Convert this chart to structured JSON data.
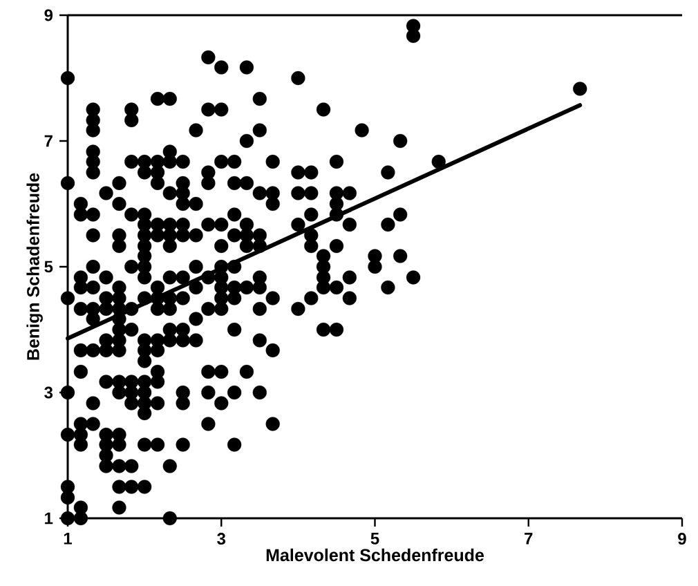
{
  "chart_data": {
    "type": "scatter",
    "xlabel": "Malevolent Schedenfreude",
    "ylabel": "Benign Schadenfreude",
    "xlim": [
      1,
      9
    ],
    "ylim": [
      1,
      9
    ],
    "xticks": [
      1,
      3,
      5,
      7,
      9
    ],
    "yticks": [
      1,
      3,
      5,
      7,
      9
    ],
    "marker": "circle",
    "series": [
      {
        "color": "#000000",
        "x": [
          1,
          1,
          1,
          1,
          1,
          1,
          1,
          1,
          1.17,
          1.17,
          1.17,
          1.17,
          1.17,
          1.17,
          1.17,
          1.17,
          1.17,
          1.17,
          1.17,
          1.17,
          1.33,
          1.33,
          1.33,
          1.33,
          1.33,
          1.33,
          1.33,
          1.33,
          1.33,
          1.33,
          1.33,
          1.33,
          1.33,
          1.33,
          1.33,
          1.5,
          1.5,
          1.5,
          1.5,
          1.5,
          1.5,
          1.5,
          1.5,
          1.5,
          1.5,
          1.5,
          1.67,
          1.67,
          1.67,
          1.67,
          1.67,
          1.67,
          1.67,
          1.67,
          1.67,
          1.67,
          1.67,
          1.67,
          1.67,
          1.67,
          1.67,
          1.67,
          1.67,
          1.67,
          1.83,
          1.83,
          1.83,
          1.83,
          1.83,
          1.83,
          1.83,
          1.83,
          1.83,
          1.83,
          1.83,
          1.83,
          2,
          2,
          2,
          2,
          2,
          2,
          2,
          2,
          2,
          2,
          2,
          2,
          2,
          2,
          2,
          2,
          2,
          2,
          2,
          2.17,
          2.17,
          2.17,
          2.17,
          2.17,
          2.17,
          2.17,
          2.17,
          2.17,
          2.17,
          2.17,
          2.17,
          2.17,
          2.17,
          2.17,
          2.33,
          2.33,
          2.33,
          2.33,
          2.33,
          2.33,
          2.33,
          2.33,
          2.33,
          2.33,
          2.33,
          2.33,
          2.33,
          2.33,
          2.5,
          2.5,
          2.5,
          2.5,
          2.5,
          2.5,
          2.5,
          2.5,
          2.5,
          2.5,
          2.5,
          2.5,
          2.5,
          2.67,
          2.67,
          2.67,
          2.67,
          2.67,
          2.67,
          2.67,
          2.83,
          2.83,
          2.83,
          2.83,
          2.83,
          2.83,
          2.83,
          2.83,
          2.83,
          2.83,
          3,
          3,
          3,
          3,
          3,
          3,
          3,
          3,
          3,
          3,
          3,
          3,
          3.17,
          3.17,
          3.17,
          3.17,
          3.17,
          3.17,
          3.17,
          3.17,
          3.17,
          3.17,
          3.33,
          3.33,
          3.33,
          3.33,
          3.33,
          3.33,
          3.33,
          3.33,
          3.5,
          3.5,
          3.5,
          3.5,
          3.5,
          3.5,
          3.5,
          3.5,
          3.5,
          3.5,
          3.67,
          3.67,
          3.67,
          3.67,
          3.67,
          3.67,
          4,
          4,
          4,
          4,
          4,
          4.17,
          4.17,
          4.17,
          4.17,
          4.17,
          4.17,
          4.33,
          4.33,
          4.33,
          4.33,
          4.33,
          4.33,
          4.5,
          4.5,
          4.5,
          4.5,
          4.5,
          4.5,
          4.5,
          4.67,
          4.67,
          4.67,
          4.67,
          4.83,
          5,
          5,
          5.17,
          5.17,
          5.17,
          5.33,
          5.33,
          5.33,
          5.5,
          5.5,
          5.5,
          5.83,
          7.67
        ],
        "values": [
          8,
          6.33,
          4.5,
          3,
          2.33,
          1.5,
          1.33,
          1,
          6,
          5.83,
          4.83,
          4.67,
          4.33,
          3.67,
          3.33,
          2.5,
          2.33,
          2.17,
          1.17,
          1,
          7.5,
          7.33,
          7.17,
          6.83,
          6.67,
          6.5,
          5.83,
          5.5,
          5,
          4.67,
          4.33,
          4.17,
          3.67,
          2.83,
          2.5,
          6.17,
          4.83,
          4.5,
          4.33,
          3.83,
          3.67,
          3.17,
          2.33,
          2.17,
          2,
          1.83,
          6.33,
          6,
          5.5,
          5.33,
          4.67,
          4.5,
          4.33,
          4.17,
          4,
          3.83,
          3.67,
          3.17,
          3,
          2.33,
          2.17,
          1.83,
          1.5,
          1.17,
          7.5,
          7.33,
          6.67,
          5.83,
          5,
          4.33,
          4,
          3.17,
          3,
          2.83,
          1.83,
          1.5,
          6.67,
          6.5,
          5.83,
          5.67,
          5.5,
          5.33,
          5.17,
          5,
          4.83,
          4.5,
          3.83,
          3.67,
          3.5,
          3.17,
          3,
          2.83,
          2.67,
          2.17,
          1.5,
          7.67,
          6.67,
          6.5,
          6.33,
          5.67,
          5.5,
          4.67,
          4.5,
          4.33,
          3.83,
          3.67,
          3.33,
          3.17,
          2.83,
          2.17,
          7.67,
          6.83,
          6.67,
          6.17,
          5.67,
          5.5,
          5.33,
          4.83,
          4.5,
          4.33,
          4,
          3.83,
          1.83,
          1,
          6.67,
          6.33,
          6.17,
          6,
          5.67,
          5.5,
          4.83,
          4.5,
          4,
          3.83,
          3,
          2.83,
          2.17,
          7.17,
          6,
          5.5,
          5,
          4.67,
          4.17,
          3.83,
          8.33,
          7.5,
          6.5,
          6.33,
          5.67,
          4.83,
          4.33,
          3.33,
          3,
          2.5,
          8.17,
          7.5,
          6.67,
          5.67,
          5.33,
          5,
          4.83,
          4.67,
          4.5,
          4.33,
          3.33,
          2.83,
          6.67,
          6.33,
          5.83,
          5.5,
          5,
          4.67,
          4.5,
          4,
          3,
          2.17,
          8.17,
          7,
          6.33,
          5.67,
          5.5,
          5.33,
          4.67,
          3.33,
          7.67,
          7.17,
          6.17,
          5.5,
          5.33,
          4.83,
          4.67,
          4.33,
          3.83,
          3,
          6.67,
          6.17,
          6,
          4.5,
          3.67,
          2.5,
          8,
          6.5,
          6.17,
          5.67,
          4.33,
          6.5,
          6.17,
          5.83,
          5.5,
          5.33,
          4.5,
          7.5,
          5.17,
          5,
          4.83,
          4.67,
          4,
          6.67,
          6.17,
          6,
          5.83,
          5.33,
          4.67,
          4,
          6.17,
          5.67,
          4.83,
          4.5,
          7.17,
          5.17,
          5,
          6.5,
          5.67,
          4.67,
          7,
          5.83,
          5.17,
          8.83,
          8.67,
          4.83,
          6.67,
          7.83
        ]
      },
      {
        "type": "line",
        "color": "#000000",
        "marker": "none",
        "x": [
          1,
          7.67
        ],
        "values": [
          3.86,
          7.57
        ]
      }
    ]
  }
}
